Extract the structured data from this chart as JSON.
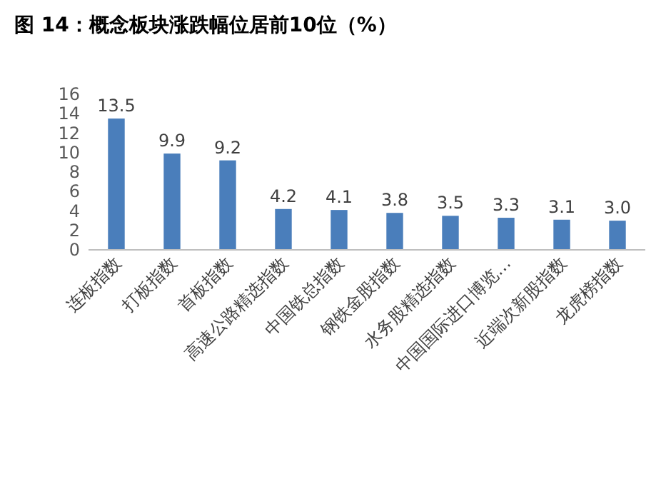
{
  "chart_data": {
    "type": "bar",
    "title": "图 14：概念板块涨跌幅位居前10位（%）",
    "categories": [
      "连板指数",
      "打板指数",
      "首板指数",
      "高速公路精选指数",
      "中国铁总指数",
      "钢铁金股指数",
      "水务股精选指数",
      "中国国际进口博览…",
      "近端次新股指数",
      "龙虎榜指数"
    ],
    "values": [
      13.5,
      9.9,
      9.2,
      4.2,
      4.1,
      3.8,
      3.5,
      3.3,
      3.1,
      3.0
    ],
    "value_labels": [
      "13.5",
      "9.9",
      "9.2",
      "4.2",
      "4.1",
      "3.8",
      "3.5",
      "3.3",
      "3.1",
      "3.0"
    ],
    "color": "#4a7ebb",
    "ylim": [
      0,
      16
    ],
    "yticks": [
      0,
      2,
      4,
      6,
      8,
      10,
      12,
      14,
      16
    ]
  }
}
